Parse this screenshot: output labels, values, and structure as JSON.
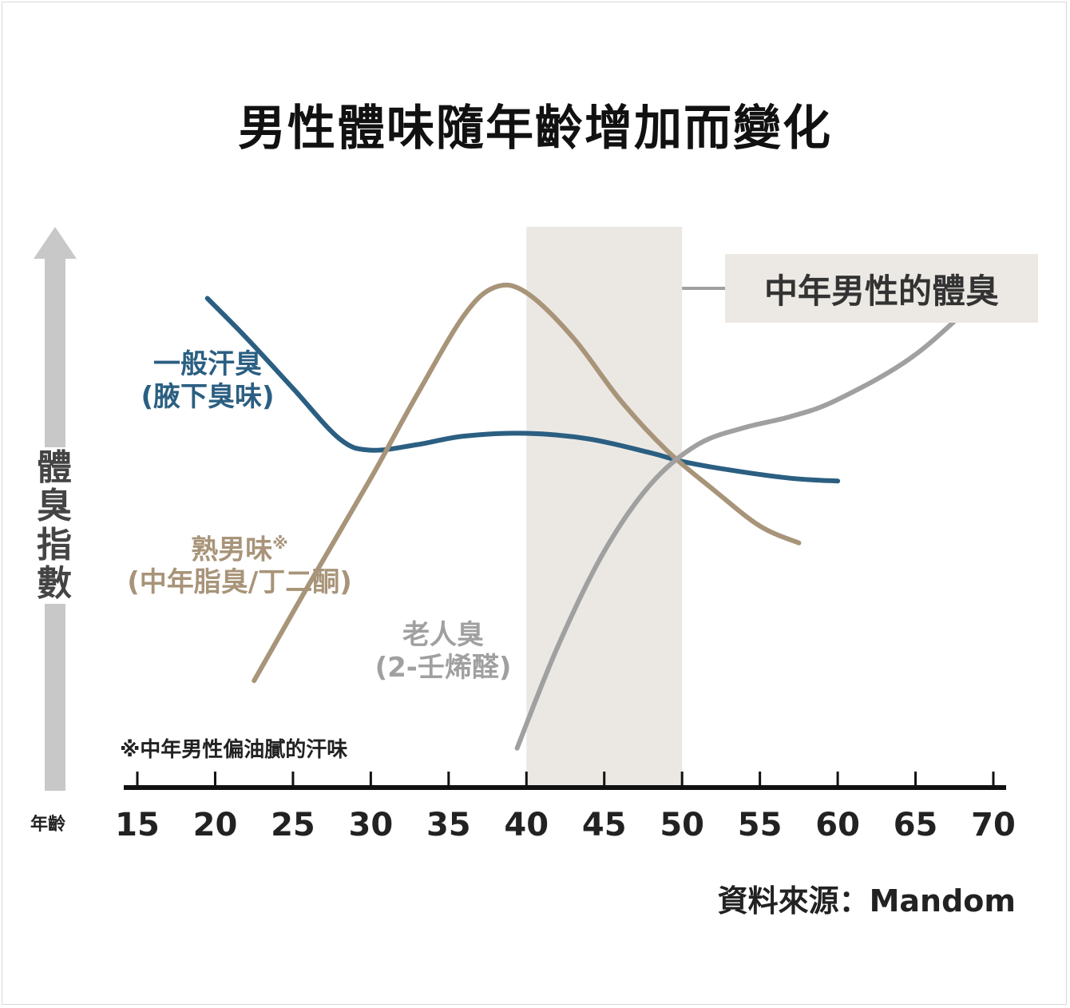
{
  "title": "男性體味隨年齡增加而變化",
  "y_label_chars": [
    "體",
    "臭",
    "指",
    "數"
  ],
  "x_label": "年齡",
  "highlight_label": "中年男性的體臭",
  "footnote": "※中年男性偏油膩的汗味",
  "source": "資料來源：Mandom",
  "chart_data": {
    "type": "line",
    "title": "男性體味隨年齡增加而變化",
    "xlabel": "年齡",
    "ylabel": "體臭指數",
    "x_ticks": [
      15,
      20,
      25,
      30,
      35,
      40,
      45,
      50,
      55,
      60,
      65,
      70
    ],
    "xlim": [
      15,
      70
    ],
    "ylim": [
      0,
      100
    ],
    "highlight_range": [
      40,
      50
    ],
    "series": [
      {
        "label_line1": "一般汗臭",
        "label_line2": "(腋下臭味)",
        "color": "#2b5f82",
        "points": [
          [
            19.5,
            87
          ],
          [
            22,
            80
          ],
          [
            25,
            71
          ],
          [
            28,
            62
          ],
          [
            30,
            60
          ],
          [
            33,
            61
          ],
          [
            36,
            62.5
          ],
          [
            40,
            63
          ],
          [
            44,
            62
          ],
          [
            48,
            59.5
          ],
          [
            50,
            58
          ],
          [
            53,
            56.5
          ],
          [
            57,
            55
          ],
          [
            60,
            54.5
          ]
        ]
      },
      {
        "label_line1": "熟男味",
        "label_line1_mark": "※",
        "label_line2": "(中年脂臭/丁二酮)",
        "color": "#a89479",
        "points": [
          [
            22.5,
            19
          ],
          [
            26,
            36
          ],
          [
            30,
            55
          ],
          [
            33,
            70
          ],
          [
            36,
            84
          ],
          [
            38,
            89
          ],
          [
            40,
            88
          ],
          [
            43,
            80
          ],
          [
            46,
            69
          ],
          [
            49,
            60
          ],
          [
            52,
            53
          ],
          [
            55,
            46.5
          ],
          [
            57.5,
            43.5
          ]
        ]
      },
      {
        "label_line1": "老人臭",
        "label_line2": "(2-壬烯醛)",
        "color": "#a0a0a0",
        "points": [
          [
            39.4,
            7
          ],
          [
            42,
            25
          ],
          [
            45,
            42
          ],
          [
            48,
            54
          ],
          [
            51,
            61
          ],
          [
            54,
            64
          ],
          [
            57,
            66
          ],
          [
            60,
            69
          ],
          [
            65,
            77
          ],
          [
            70,
            89.5
          ]
        ]
      }
    ]
  }
}
